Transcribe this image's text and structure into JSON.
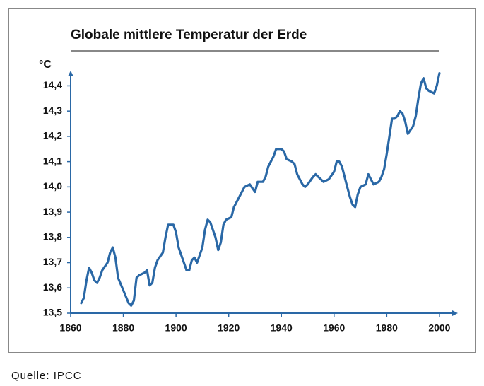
{
  "chart_data": {
    "type": "line",
    "title": "Globale mittlere Temperatur der Erde",
    "y_label": "°C",
    "source": "Quelle: IPCC",
    "xlim": [
      1860,
      2007
    ],
    "xticks": [
      1860,
      1880,
      1900,
      1920,
      1940,
      1960,
      1980,
      2000
    ],
    "ylim": [
      13.5,
      14.46
    ],
    "yticks": [
      {
        "value": 13.5,
        "label": "13,5"
      },
      {
        "value": 13.6,
        "label": "13,6"
      },
      {
        "value": 13.7,
        "label": "13,7"
      },
      {
        "value": 13.8,
        "label": "13,8"
      },
      {
        "value": 13.9,
        "label": "13,9"
      },
      {
        "value": 14.0,
        "label": "14,0"
      },
      {
        "value": 14.1,
        "label": "14,1"
      },
      {
        "value": 14.2,
        "label": "14,2"
      },
      {
        "value": 14.3,
        "label": "14,3"
      },
      {
        "value": 14.4,
        "label": "14,4"
      }
    ],
    "series": [
      {
        "color": "#2a68a6",
        "x": [
          1864,
          1865,
          1866,
          1867,
          1868,
          1869,
          1870,
          1871,
          1872,
          1874,
          1875,
          1876,
          1877,
          1878,
          1880,
          1882,
          1883,
          1884,
          1885,
          1886,
          1888,
          1889,
          1890,
          1891,
          1892,
          1893,
          1895,
          1896,
          1897,
          1899,
          1900,
          1901,
          1903,
          1904,
          1905,
          1906,
          1907,
          1908,
          1910,
          1911,
          1912,
          1913,
          1915,
          1916,
          1917,
          1918,
          1919,
          1921,
          1922,
          1923,
          1924,
          1926,
          1928,
          1930,
          1931,
          1933,
          1934,
          1935,
          1936,
          1937,
          1938,
          1940,
          1941,
          1942,
          1944,
          1945,
          1946,
          1948,
          1949,
          1950,
          1952,
          1953,
          1954,
          1956,
          1958,
          1960,
          1961,
          1962,
          1963,
          1965,
          1966,
          1967,
          1968,
          1969,
          1970,
          1972,
          1973,
          1974,
          1975,
          1977,
          1978,
          1979,
          1980,
          1981,
          1982,
          1983,
          1984,
          1985,
          1986,
          1987,
          1988,
          1990,
          1991,
          1992,
          1993,
          1994,
          1995,
          1996,
          1998,
          1999,
          2000
        ],
        "values": [
          13.54,
          13.56,
          13.63,
          13.68,
          13.66,
          13.63,
          13.62,
          13.64,
          13.67,
          13.7,
          13.74,
          13.76,
          13.72,
          13.64,
          13.59,
          13.54,
          13.53,
          13.55,
          13.64,
          13.65,
          13.66,
          13.67,
          13.61,
          13.62,
          13.68,
          13.71,
          13.74,
          13.8,
          13.85,
          13.85,
          13.82,
          13.76,
          13.7,
          13.67,
          13.67,
          13.71,
          13.72,
          13.7,
          13.76,
          13.83,
          13.87,
          13.86,
          13.8,
          13.75,
          13.78,
          13.85,
          13.87,
          13.88,
          13.92,
          13.94,
          13.96,
          14.0,
          14.01,
          13.98,
          14.02,
          14.02,
          14.04,
          14.08,
          14.1,
          14.12,
          14.15,
          14.15,
          14.14,
          14.11,
          14.1,
          14.09,
          14.05,
          14.01,
          14.0,
          14.01,
          14.04,
          14.05,
          14.04,
          14.02,
          14.03,
          14.06,
          14.1,
          14.1,
          14.08,
          14.0,
          13.96,
          13.93,
          13.92,
          13.97,
          14.0,
          14.01,
          14.05,
          14.03,
          14.01,
          14.02,
          14.04,
          14.07,
          14.13,
          14.2,
          14.27,
          14.27,
          14.28,
          14.3,
          14.29,
          14.26,
          14.21,
          14.24,
          14.28,
          14.35,
          14.41,
          14.43,
          14.39,
          14.38,
          14.37,
          14.4,
          14.45
        ]
      }
    ]
  }
}
